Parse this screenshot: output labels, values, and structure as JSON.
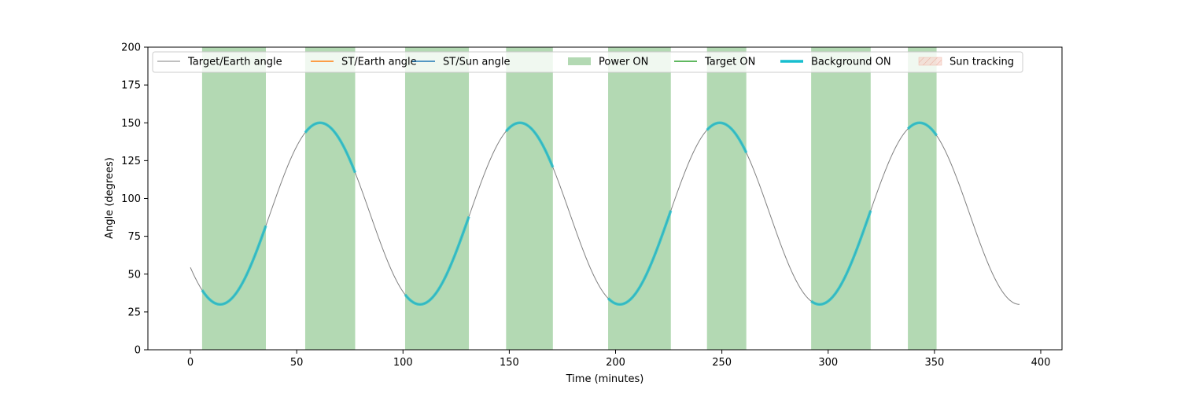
{
  "chart_data": {
    "type": "line",
    "xlabel": "Time (minutes)",
    "ylabel": "Angle (degrees)",
    "xlim": [
      -20,
      410
    ],
    "ylim": [
      0,
      200
    ],
    "xticks": [
      0,
      50,
      100,
      150,
      200,
      250,
      300,
      350,
      400
    ],
    "yticks": [
      0,
      25,
      50,
      75,
      100,
      125,
      150,
      175,
      200
    ],
    "grid": false,
    "legend_placement": "top",
    "colors": {
      "target_earth": "#808080",
      "st_earth": "#ff7f0e",
      "st_sun": "#1f77b4",
      "power_on": "#b3d9b3",
      "target_on": "#2ca02c",
      "background_on": "#17becf",
      "sun_tracking": "#f4c7bd"
    },
    "legend": [
      {
        "label": "Target/Earth angle",
        "kind": "line",
        "color": "#808080",
        "width": 1
      },
      {
        "label": "ST/Earth angle",
        "kind": "line",
        "color": "#ff7f0e",
        "width": 1.5
      },
      {
        "label": "ST/Sun angle",
        "kind": "line",
        "color": "#1f77b4",
        "width": 1.5
      },
      {
        "label": "Power ON",
        "kind": "patch",
        "color": "#b3d9b3"
      },
      {
        "label": "Target ON",
        "kind": "line",
        "color": "#2ca02c",
        "width": 1.5
      },
      {
        "label": "Background ON",
        "kind": "line",
        "color": "#17becf",
        "width": 3.5
      },
      {
        "label": "Sun tracking",
        "kind": "hatch",
        "color": "#f4c7bd"
      }
    ],
    "target_earth_angle": {
      "x_range": [
        0,
        390
      ],
      "mean": 90,
      "amplitude": 60,
      "period": 94,
      "min_at": 14,
      "shape": "cosine"
    },
    "power_on_intervals": [
      [
        5.5,
        35.5
      ],
      [
        54,
        77.5
      ],
      [
        101,
        131
      ],
      [
        148.5,
        170.5
      ],
      [
        196.5,
        226
      ],
      [
        243,
        261.5
      ],
      [
        292,
        320
      ],
      [
        337.5,
        351
      ]
    ],
    "background_on_intervals": [
      [
        5.5,
        35.5
      ],
      [
        54,
        77.5
      ],
      [
        101,
        131
      ],
      [
        148.5,
        170.5
      ],
      [
        196.5,
        226
      ],
      [
        243,
        261.5
      ],
      [
        292,
        320
      ],
      [
        337.5,
        351
      ]
    ]
  }
}
